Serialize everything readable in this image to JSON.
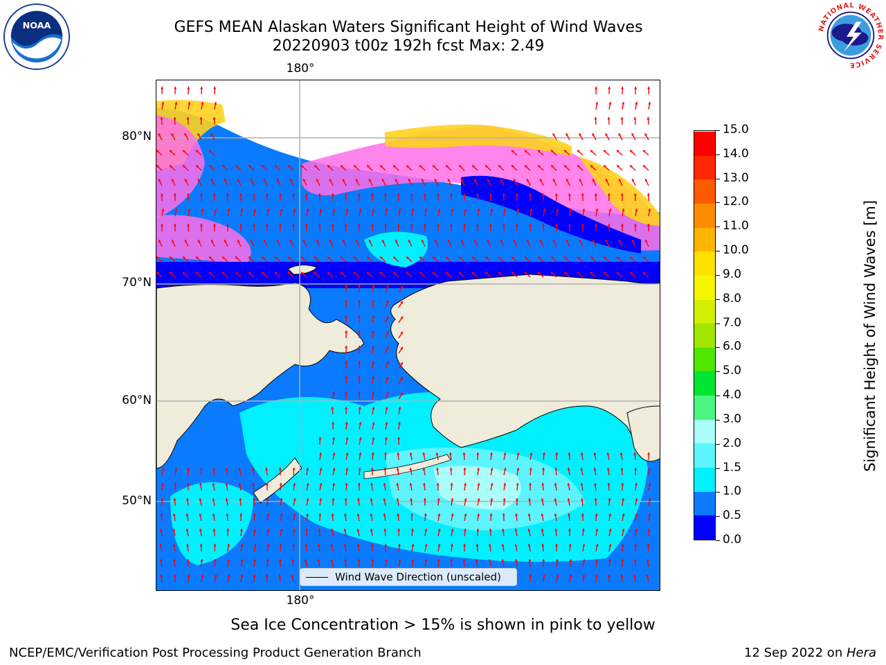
{
  "title": {
    "line1": "GEFS MEAN Alaskan Waters Significant Height of Wind Waves",
    "line2": "20220903 t00z 192h fcst   Max: 2.49"
  },
  "map": {
    "lat_labels": [
      "80°N",
      "70°N",
      "60°N",
      "50°N"
    ],
    "lon_label_top": "180°",
    "lon_label_bottom": "180°",
    "legend_label": "Wind Wave Direction (unscaled)",
    "colors": {
      "land": "#efecdc",
      "ice_pink": "#ff6ee8",
      "ice_yellow": "#ffd21e",
      "wave_0_05": "#0000ff",
      "wave_05_10": "#0a7bff",
      "wave_10_15": "#00f0ff",
      "wave_15_20": "#5cf5ff",
      "wave_20_30": "#aafffa",
      "arrow": "#ff0000",
      "grid": "#b0b0b0"
    }
  },
  "colorbar": {
    "title": "Significant Height of Wind Waves [m]",
    "tick_labels": [
      "0.0",
      "0.5",
      "1.0",
      "1.5",
      "2.0",
      "3.0",
      "4.0",
      "5.0",
      "6.0",
      "7.0",
      "8.0",
      "9.0",
      "10.0",
      "11.0",
      "12.0",
      "13.0",
      "14.0",
      "15.0"
    ],
    "colors": [
      "#0000ff",
      "#0a7bff",
      "#00f0ff",
      "#5cf5ff",
      "#aafffa",
      "#4cf580",
      "#00e632",
      "#50e600",
      "#a0e600",
      "#d2f000",
      "#f5f500",
      "#ffe100",
      "#ffb400",
      "#ff8c00",
      "#ff5a00",
      "#ff2800",
      "#ff0000"
    ]
  },
  "caption": "Sea Ice Concentration > 15% is shown in pink to yellow",
  "footer": {
    "left": "NCEP/EMC/Verification Post Processing Product Generation Branch",
    "right_date": "12 Sep 2022 on ",
    "right_host": "Hera"
  },
  "logos": {
    "noaa_text": "NOAA",
    "nws_ring_text": "NATIONAL WEATHER SERVICE"
  }
}
